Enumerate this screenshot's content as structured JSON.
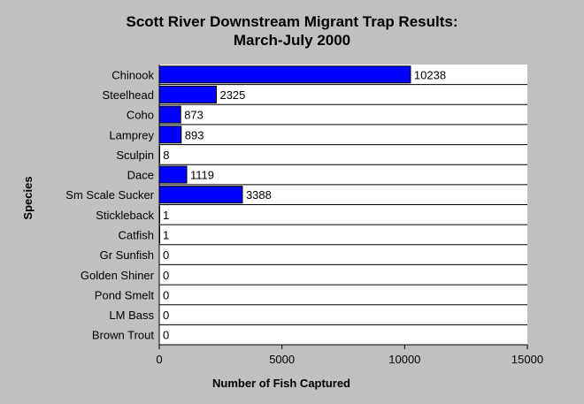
{
  "chart_data": {
    "type": "bar",
    "orientation": "horizontal",
    "title_lines": [
      "Scott River Downstream Migrant Trap Results:",
      "March-July 2000"
    ],
    "xlabel": "Number of Fish Captured",
    "ylabel": "Species",
    "categories": [
      "Chinook",
      "Steelhead",
      "Coho",
      "Lamprey",
      "Sculpin",
      "Dace",
      "Sm Scale Sucker",
      "Stickleback",
      "Catfish",
      "Gr Sunfish",
      "Golden Shiner",
      "Pond Smelt",
      "LM Bass",
      "Brown Trout"
    ],
    "values": [
      10238,
      2325,
      873,
      893,
      8,
      1119,
      3388,
      1,
      1,
      0,
      0,
      0,
      0,
      0
    ],
    "xlim": [
      0,
      15000
    ],
    "xticks": [
      0,
      5000,
      10000,
      15000
    ],
    "grid": "horizontal lines between categories",
    "colors": {
      "background": "#c0c0c0",
      "plot": "#ffffff",
      "bar": "#0000ff"
    }
  }
}
